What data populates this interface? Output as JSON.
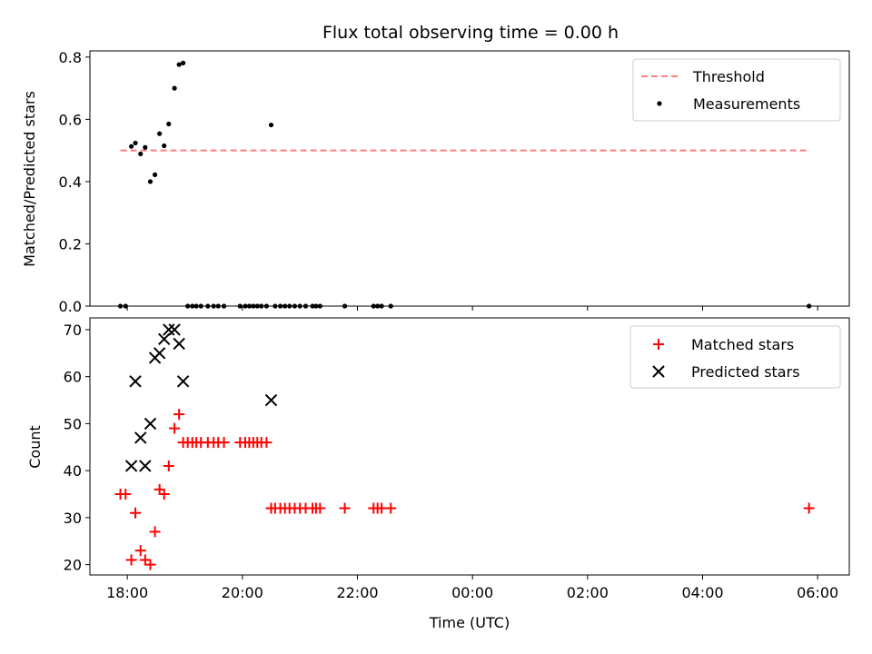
{
  "chart_data": [
    {
      "type": "scatter",
      "title": "Flux total observing time = 0.00 h",
      "ylabel": "Matched/Predicted stars",
      "xlabel": "",
      "ylim": [
        0,
        0.82
      ],
      "yticks": [
        0.0,
        0.2,
        0.4,
        0.6,
        0.8
      ],
      "ytick_labels": [
        "0.0",
        "0.2",
        "0.4",
        "0.6",
        "0.8"
      ],
      "xlim": [
        17.35,
        30.55
      ],
      "xticks": [
        18,
        20,
        22,
        24,
        26,
        28,
        30
      ],
      "xtick_labels": [
        "",
        "",
        "",
        "",
        "",
        "",
        ""
      ],
      "legend_position": "top-right",
      "threshold": {
        "name": "Threshold",
        "value": 0.5,
        "x": [
          17.88,
          29.85
        ],
        "color": "#ff7f7f"
      },
      "series": [
        {
          "name": "Measurements",
          "color": "#000000",
          "x": [
            17.88,
            17.97,
            18.07,
            18.14,
            18.23,
            18.31,
            18.4,
            18.48,
            18.56,
            18.64,
            18.72,
            18.82,
            18.9,
            18.97,
            19.05,
            19.13,
            19.2,
            19.28,
            19.4,
            19.5,
            19.58,
            19.68,
            19.96,
            20.05,
            20.12,
            20.19,
            20.26,
            20.33,
            20.42,
            20.5,
            20.57,
            20.66,
            20.74,
            20.82,
            20.91,
            21.0,
            21.1,
            21.22,
            21.28,
            21.35,
            21.78,
            22.28,
            22.35,
            22.42,
            22.58,
            29.85
          ],
          "y": [
            0,
            0,
            0.513,
            0.524,
            0.489,
            0.51,
            0.4,
            0.422,
            0.554,
            0.515,
            0.585,
            0.7,
            0.776,
            0.781,
            0,
            0,
            0,
            0,
            0,
            0,
            0,
            0,
            0,
            0,
            0,
            0,
            0,
            0,
            0,
            0.582,
            0,
            0,
            0,
            0,
            0,
            0,
            0,
            0,
            0,
            0,
            0,
            0,
            0,
            0,
            0,
            0
          ]
        }
      ]
    },
    {
      "type": "scatter",
      "title": "",
      "ylabel": "Count",
      "xlabel": "Time (UTC)",
      "ylim": [
        17.8,
        72.5
      ],
      "yticks": [
        20,
        30,
        40,
        50,
        60,
        70
      ],
      "ytick_labels": [
        "20",
        "30",
        "40",
        "50",
        "60",
        "70"
      ],
      "xlim": [
        17.35,
        30.55
      ],
      "xticks": [
        18,
        20,
        22,
        24,
        26,
        28,
        30
      ],
      "xtick_labels": [
        "18:00",
        "20:00",
        "22:00",
        "00:00",
        "02:00",
        "04:00",
        "06:00"
      ],
      "legend_position": "top-right",
      "series": [
        {
          "name": "Matched stars",
          "marker": "plus",
          "color": "#ff0000",
          "x": [
            17.88,
            17.97,
            18.07,
            18.14,
            18.23,
            18.31,
            18.4,
            18.48,
            18.56,
            18.64,
            18.72,
            18.82,
            18.9,
            18.97,
            19.05,
            19.13,
            19.2,
            19.28,
            19.4,
            19.5,
            19.58,
            19.68,
            19.96,
            20.05,
            20.12,
            20.19,
            20.26,
            20.33,
            20.42,
            20.5,
            20.57,
            20.66,
            20.74,
            20.82,
            20.91,
            21.0,
            21.1,
            21.22,
            21.28,
            21.35,
            21.78,
            22.28,
            22.35,
            22.42,
            22.58,
            29.85
          ],
          "y": [
            35,
            35,
            21,
            31,
            23,
            21,
            20,
            27,
            36,
            35,
            41,
            49,
            52,
            46,
            46,
            46,
            46,
            46,
            46,
            46,
            46,
            46,
            46,
            46,
            46,
            46,
            46,
            46,
            46,
            32,
            32,
            32,
            32,
            32,
            32,
            32,
            32,
            32,
            32,
            32,
            32,
            32,
            32,
            32,
            32,
            32
          ]
        },
        {
          "name": "Predicted stars",
          "marker": "x",
          "color": "#000000",
          "x": [
            18.07,
            18.14,
            18.23,
            18.31,
            18.4,
            18.48,
            18.56,
            18.64,
            18.72,
            18.82,
            18.9,
            18.97,
            20.5
          ],
          "y": [
            41,
            59,
            47,
            41,
            50,
            64,
            65,
            68,
            70,
            70,
            67,
            59,
            55
          ]
        }
      ]
    }
  ]
}
